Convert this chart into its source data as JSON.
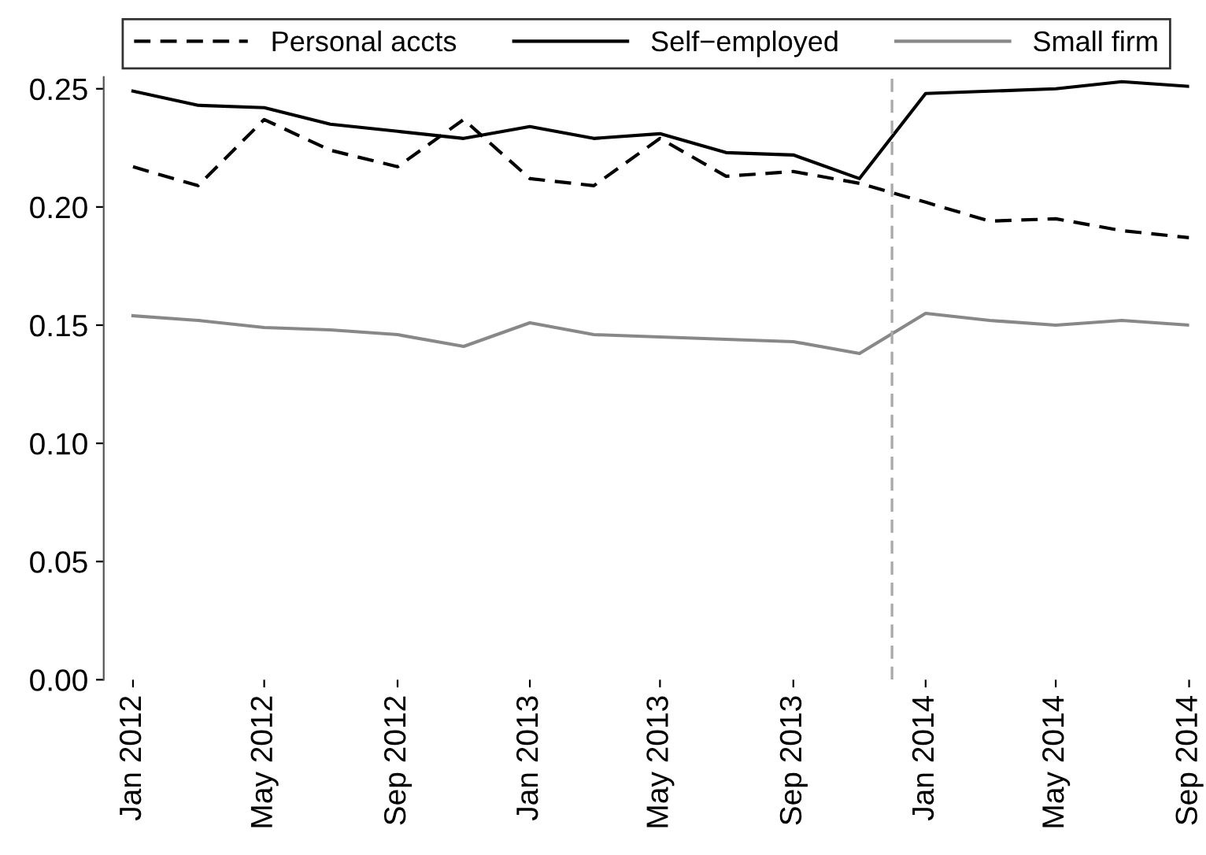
{
  "chart_data": {
    "type": "line",
    "x": [
      "2012-01",
      "2012-03",
      "2012-05",
      "2012-07",
      "2012-09",
      "2012-11",
      "2013-01",
      "2013-03",
      "2013-05",
      "2013-07",
      "2013-09",
      "2013-11",
      "2014-01",
      "2014-03",
      "2014-05",
      "2014-07",
      "2014-09"
    ],
    "series": [
      {
        "name": "Personal accts",
        "color": "#000000",
        "line_style": "dashed",
        "values": [
          0.217,
          0.209,
          0.237,
          0.224,
          0.217,
          0.237,
          0.212,
          0.209,
          0.229,
          0.213,
          0.215,
          0.21,
          0.202,
          0.194,
          0.195,
          0.19,
          0.187
        ]
      },
      {
        "name": "Self−employed",
        "color": "#000000",
        "line_style": "solid",
        "values": [
          0.249,
          0.243,
          0.242,
          0.235,
          0.232,
          0.229,
          0.234,
          0.229,
          0.231,
          0.223,
          0.222,
          0.212,
          0.248,
          0.249,
          0.25,
          0.253,
          0.251
        ]
      },
      {
        "name": "Small firm",
        "color": "#888888",
        "line_style": "solid",
        "values": [
          0.154,
          0.152,
          0.149,
          0.148,
          0.146,
          0.141,
          0.151,
          0.146,
          0.145,
          0.144,
          0.143,
          0.138,
          0.155,
          0.152,
          0.15,
          0.152,
          0.15
        ]
      }
    ],
    "xlim": [
      "2011-12-05",
      "2014-09"
    ],
    "xticks": [
      {
        "value": "2012-01",
        "label": "Jan 2012"
      },
      {
        "value": "2012-05",
        "label": "May 2012"
      },
      {
        "value": "2012-09",
        "label": "Sep 2012"
      },
      {
        "value": "2013-01",
        "label": "Jan 2013"
      },
      {
        "value": "2013-05",
        "label": "May 2013"
      },
      {
        "value": "2013-09",
        "label": "Sep 2013"
      },
      {
        "value": "2014-01",
        "label": "Jan 2014"
      },
      {
        "value": "2014-05",
        "label": "May 2014"
      },
      {
        "value": "2014-09",
        "label": "Sep 2014"
      }
    ],
    "ylim": [
      0,
      0.255
    ],
    "yticks": [
      {
        "value": 0,
        "label": "0.00"
      },
      {
        "value": 0.05,
        "label": "0.05"
      },
      {
        "value": 0.1,
        "label": "0.10"
      },
      {
        "value": 0.15,
        "label": "0.15"
      },
      {
        "value": 0.2,
        "label": "0.20"
      },
      {
        "value": 0.25,
        "label": "0.25"
      }
    ],
    "ref_lines": [
      {
        "axis": "x",
        "value": "2013-12",
        "label": null,
        "color": "#aaaaaa",
        "line_style": "dashed"
      }
    ],
    "grid": false,
    "legend": "top"
  }
}
